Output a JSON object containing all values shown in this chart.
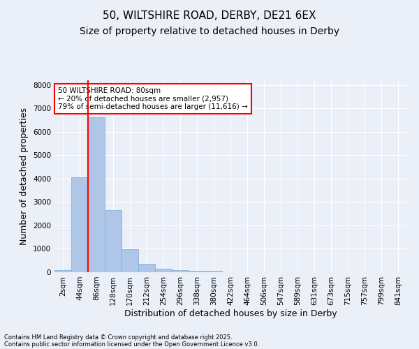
{
  "title_line1": "50, WILTSHIRE ROAD, DERBY, DE21 6EX",
  "title_line2": "Size of property relative to detached houses in Derby",
  "xlabel": "Distribution of detached houses by size in Derby",
  "ylabel": "Number of detached properties",
  "footnote1": "Contains HM Land Registry data © Crown copyright and database right 2025.",
  "footnote2": "Contains public sector information licensed under the Open Government Licence v3.0.",
  "annotation_line1": "50 WILTSHIRE ROAD: 80sqm",
  "annotation_line2": "← 20% of detached houses are smaller (2,957)",
  "annotation_line3": "79% of semi-detached houses are larger (11,616) →",
  "bin_labels": [
    "2sqm",
    "44sqm",
    "86sqm",
    "128sqm",
    "170sqm",
    "212sqm",
    "254sqm",
    "296sqm",
    "338sqm",
    "380sqm",
    "422sqm",
    "464sqm",
    "506sqm",
    "547sqm",
    "589sqm",
    "631sqm",
    "673sqm",
    "715sqm",
    "757sqm",
    "799sqm",
    "841sqm"
  ],
  "bar_values": [
    80,
    4050,
    6620,
    2650,
    980,
    350,
    140,
    75,
    45,
    50,
    0,
    0,
    0,
    0,
    0,
    0,
    0,
    0,
    0,
    0,
    0
  ],
  "bar_color": "#aec6e8",
  "bar_edge_color": "#7aadd4",
  "red_line_x": 1.5,
  "ylim": [
    0,
    8200
  ],
  "yticks": [
    0,
    1000,
    2000,
    3000,
    4000,
    5000,
    6000,
    7000,
    8000
  ],
  "background_color": "#eaeff8",
  "plot_bg_color": "#eaeff8",
  "grid_color": "#ffffff",
  "title_fontsize": 11,
  "subtitle_fontsize": 10,
  "axis_label_fontsize": 9,
  "tick_fontsize": 7.5
}
